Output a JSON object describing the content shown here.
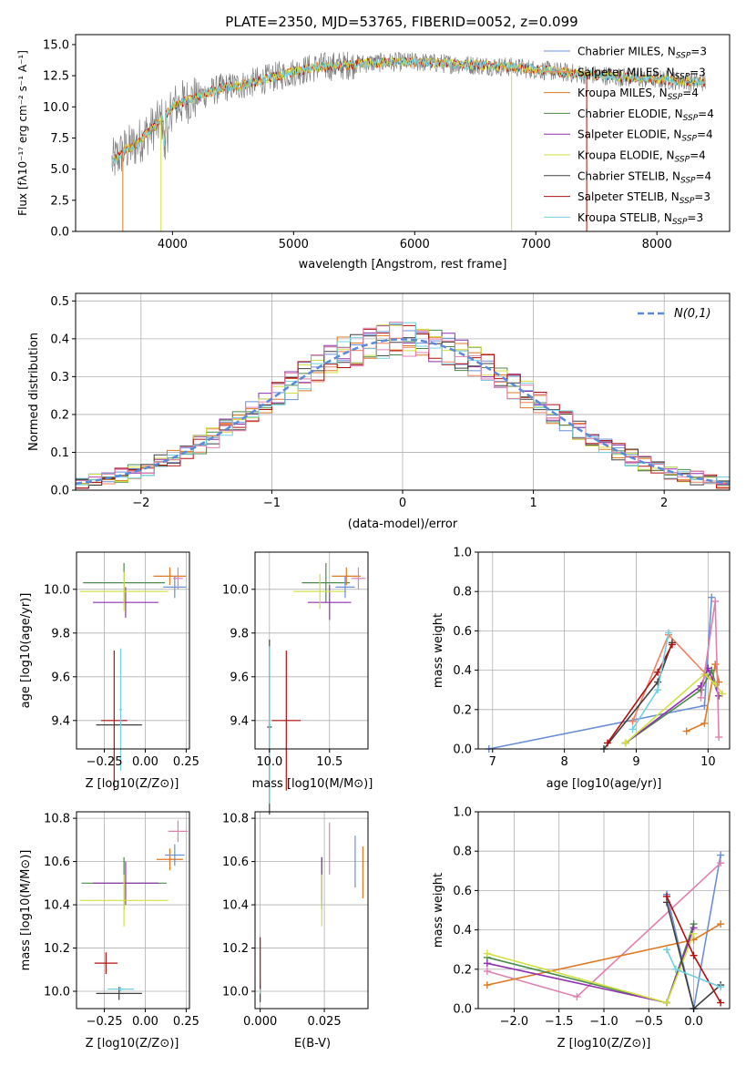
{
  "title": "PLATE=2350, MJD=53765, FIBERID=0052, z=0.099",
  "colors": {
    "chabrier_miles": "#6a8fd8",
    "salpeter_miles": "#f08060",
    "kroupa_miles": "#e07820",
    "chabrier_elodie": "#4a8a4a",
    "salpeter_elodie": "#9030b0",
    "kroupa_elodie": "#d0e040",
    "chabrier_stelib": "#404040",
    "salpeter_stelib": "#b01010",
    "kroupa_stelib": "#70d0e0",
    "pink": "#e080b0",
    "gauss": "#5a8ad8",
    "grid": "#b0b0b0"
  },
  "chart_data": [
    {
      "id": "spectrum",
      "type": "line",
      "xlabel": "wavelength [Angstrom, rest frame]",
      "ylabel": "Flux [fλ10⁻¹⁷ erg cm⁻² s⁻¹ A⁻¹]",
      "xlim": [
        3200,
        8600
      ],
      "ylim": [
        0,
        15.8
      ],
      "xticks": [
        4000,
        5000,
        6000,
        7000,
        8000
      ],
      "yticks": [
        0.0,
        2.5,
        5.0,
        7.5,
        10.0,
        12.5,
        15.0
      ],
      "legend_position": "right",
      "legend": [
        {
          "label": "Chabrier MILES, N_SSP=3",
          "color": "#6a8fd8"
        },
        {
          "label": "Salpeter MILES, N_SSP=3",
          "color": "#f08060"
        },
        {
          "label": "Kroupa MILES, N_SSP=4",
          "color": "#e07820"
        },
        {
          "label": "Chabrier ELODIE, N_SSP=4",
          "color": "#4a8a4a"
        },
        {
          "label": "Salpeter ELODIE, N_SSP=4",
          "color": "#9030b0"
        },
        {
          "label": "Kroupa ELODIE, N_SSP=4",
          "color": "#d0e040"
        },
        {
          "label": "Chabrier STELIB, N_SSP=4",
          "color": "#404040"
        },
        {
          "label": "Salpeter STELIB, N_SSP=3",
          "color": "#b01010"
        },
        {
          "label": "Kroupa STELIB, N_SSP=3",
          "color": "#70d0e0"
        }
      ],
      "continuum": [
        [
          3500,
          5.5
        ],
        [
          3600,
          6.5
        ],
        [
          3700,
          7.0
        ],
        [
          3800,
          8.0
        ],
        [
          3900,
          8.8
        ],
        [
          4000,
          10.0
        ],
        [
          4200,
          10.8
        ],
        [
          4400,
          11.5
        ],
        [
          4600,
          11.8
        ],
        [
          4800,
          12.3
        ],
        [
          5000,
          12.8
        ],
        [
          5200,
          13.2
        ],
        [
          5400,
          13.3
        ],
        [
          5600,
          13.5
        ],
        [
          5800,
          13.6
        ],
        [
          6000,
          13.6
        ],
        [
          6200,
          13.5
        ],
        [
          6400,
          13.4
        ],
        [
          6600,
          13.3
        ],
        [
          6800,
          13.2
        ],
        [
          7000,
          13.0
        ],
        [
          7200,
          12.8
        ],
        [
          7400,
          12.6
        ],
        [
          7600,
          12.5
        ],
        [
          7800,
          12.3
        ],
        [
          8000,
          12.2
        ],
        [
          8200,
          12.1
        ],
        [
          8400,
          12.0
        ]
      ]
    },
    {
      "id": "residuals",
      "type": "line",
      "xlabel": "(data-model)/error",
      "ylabel": "Normed distribution",
      "xlim": [
        -2.5,
        2.5
      ],
      "ylim": [
        0,
        0.52
      ],
      "xticks": [
        -2,
        -1,
        0,
        1,
        2
      ],
      "yticks": [
        0.0,
        0.1,
        0.2,
        0.3,
        0.4,
        0.5
      ],
      "legend_position": "upper right",
      "gauss_label": "N(0,1)",
      "hist_colors": [
        "#6a8fd8",
        "#f08060",
        "#e07820",
        "#4a8a4a",
        "#9030b0",
        "#d0e040",
        "#404040",
        "#b01010",
        "#70d0e0",
        "#e080b0"
      ]
    },
    {
      "id": "age_vs_Z",
      "type": "scatter",
      "xlabel": "Z [log10(Z/Z⊙)]",
      "ylabel": "age  [log10(age/yr)]",
      "xlim": [
        -0.42,
        0.27
      ],
      "ylim": [
        9.27,
        10.17
      ],
      "xticks": [
        -0.25,
        0.0,
        0.25
      ],
      "yticks": [
        9.4,
        9.6,
        9.8,
        10.0
      ],
      "points": [
        {
          "x": -0.16,
          "y": 9.38,
          "xerr": 0.14,
          "yerr": 0.0,
          "color": "#404040"
        },
        {
          "x": -0.19,
          "y": 9.4,
          "xerr": 0.08,
          "yerr": 0.32,
          "color": "#b01010"
        },
        {
          "x": -0.15,
          "y": 9.45,
          "xerr": 0.01,
          "yerr": 0.28,
          "color": "#70d0e0"
        },
        {
          "x": -0.13,
          "y": 10.03,
          "xerr": 0.25,
          "yerr": 0.09,
          "color": "#4a8a4a"
        },
        {
          "x": -0.12,
          "y": 9.94,
          "xerr": 0.2,
          "yerr": 0.07,
          "color": "#9030b0"
        },
        {
          "x": -0.13,
          "y": 9.99,
          "xerr": 0.27,
          "yerr": 0.09,
          "color": "#d0e040"
        },
        {
          "x": 0.15,
          "y": 10.06,
          "xerr": 0.1,
          "yerr": 0.04,
          "color": "#e07820"
        },
        {
          "x": 0.18,
          "y": 10.01,
          "xerr": 0.07,
          "yerr": 0.05,
          "color": "#6a8fd8"
        },
        {
          "x": 0.2,
          "y": 10.05,
          "xerr": 0.03,
          "yerr": 0.05,
          "color": "#e080b0"
        }
      ]
    },
    {
      "id": "age_vs_mass",
      "type": "scatter",
      "xlabel": "mass [log10(M/M⊙)]",
      "ylabel": "",
      "xlim": [
        9.88,
        10.82
      ],
      "ylim": [
        9.27,
        10.17
      ],
      "xticks": [
        10.0,
        10.5
      ],
      "yticks": [
        9.4,
        9.6,
        9.8,
        10.0
      ],
      "points": [
        {
          "x": 10.0,
          "y": 9.37,
          "xerr": 0.02,
          "yerr": 0.4,
          "color": "#404040"
        },
        {
          "x": 10.0,
          "y": 9.38,
          "xerr": 0.01,
          "yerr": 0.36,
          "color": "#70d0e0"
        },
        {
          "x": 10.14,
          "y": 9.4,
          "xerr": 0.12,
          "yerr": 0.32,
          "color": "#b01010"
        },
        {
          "x": 10.47,
          "y": 10.03,
          "xerr": 0.2,
          "yerr": 0.09,
          "color": "#4a8a4a"
        },
        {
          "x": 10.5,
          "y": 9.94,
          "xerr": 0.18,
          "yerr": 0.08,
          "color": "#9030b0"
        },
        {
          "x": 10.42,
          "y": 9.99,
          "xerr": 0.22,
          "yerr": 0.08,
          "color": "#d0e040"
        },
        {
          "x": 10.64,
          "y": 10.06,
          "xerr": 0.12,
          "yerr": 0.04,
          "color": "#e07820"
        },
        {
          "x": 10.63,
          "y": 10.01,
          "xerr": 0.08,
          "yerr": 0.05,
          "color": "#6a8fd8"
        },
        {
          "x": 10.74,
          "y": 10.05,
          "xerr": 0.06,
          "yerr": 0.05,
          "color": "#e080b0"
        }
      ]
    },
    {
      "id": "massweight_vs_age",
      "type": "line",
      "xlabel": "age  [log10(age/yr)]",
      "ylabel": "mass weight",
      "xlim": [
        6.8,
        10.3
      ],
      "ylim": [
        0,
        1.0
      ],
      "xticks": [
        7,
        8,
        9,
        10
      ],
      "yticks": [
        0.0,
        0.2,
        0.4,
        0.6,
        0.8,
        1.0
      ],
      "series": [
        {
          "color": "#6a8fd8",
          "points": [
            [
              6.95,
              0.0
            ],
            [
              9.95,
              0.22
            ],
            [
              10.05,
              0.77
            ]
          ]
        },
        {
          "color": "#f08060",
          "points": [
            [
              8.95,
              0.14
            ],
            [
              9.45,
              0.58
            ],
            [
              10.1,
              0.33
            ]
          ]
        },
        {
          "color": "#e07820",
          "points": [
            [
              9.7,
              0.09
            ],
            [
              9.95,
              0.13
            ],
            [
              10.1,
              0.43
            ],
            [
              10.15,
              0.34
            ]
          ]
        },
        {
          "color": "#4a8a4a",
          "points": [
            [
              8.85,
              0.03
            ],
            [
              9.9,
              0.3
            ],
            [
              10.05,
              0.4
            ],
            [
              10.15,
              0.27
            ]
          ]
        },
        {
          "color": "#9030b0",
          "points": [
            [
              8.85,
              0.03
            ],
            [
              9.9,
              0.32
            ],
            [
              10.0,
              0.41
            ],
            [
              10.15,
              0.27
            ]
          ]
        },
        {
          "color": "#d0e040",
          "points": [
            [
              8.85,
              0.03
            ],
            [
              9.95,
              0.38
            ],
            [
              10.1,
              0.33
            ],
            [
              10.2,
              0.28
            ]
          ]
        },
        {
          "color": "#404040",
          "points": [
            [
              8.55,
              0.0
            ],
            [
              9.3,
              0.34
            ],
            [
              9.5,
              0.54
            ]
          ]
        },
        {
          "color": "#b01010",
          "points": [
            [
              8.6,
              0.03
            ],
            [
              9.3,
              0.39
            ],
            [
              9.5,
              0.53
            ]
          ]
        },
        {
          "color": "#70d0e0",
          "points": [
            [
              8.95,
              0.1
            ],
            [
              9.3,
              0.3
            ],
            [
              9.45,
              0.59
            ]
          ]
        },
        {
          "color": "#e080b0",
          "points": [
            [
              9.9,
              0.26
            ],
            [
              10.1,
              0.75
            ],
            [
              10.15,
              0.06
            ]
          ]
        }
      ]
    },
    {
      "id": "mass_vs_Z",
      "type": "scatter",
      "xlabel": "Z [log10(Z/Z⊙)]",
      "ylabel": "mass [log10(M/M⊙)]",
      "xlim": [
        -0.42,
        0.27
      ],
      "ylim": [
        9.92,
        10.83
      ],
      "xticks": [
        -0.25,
        0.0,
        0.25
      ],
      "yticks": [
        10.0,
        10.2,
        10.4,
        10.6,
        10.8
      ],
      "points": [
        {
          "x": -0.16,
          "y": 9.99,
          "xerr": 0.14,
          "yerr": 0.03,
          "color": "#404040"
        },
        {
          "x": -0.15,
          "y": 10.01,
          "xerr": 0.08,
          "yerr": 0.01,
          "color": "#70d0e0"
        },
        {
          "x": -0.24,
          "y": 10.13,
          "xerr": 0.07,
          "yerr": 0.05,
          "color": "#b01010"
        },
        {
          "x": -0.13,
          "y": 10.5,
          "xerr": 0.26,
          "yerr": 0.12,
          "color": "#4a8a4a"
        },
        {
          "x": -0.12,
          "y": 10.5,
          "xerr": 0.2,
          "yerr": 0.1,
          "color": "#9030b0"
        },
        {
          "x": -0.13,
          "y": 10.42,
          "xerr": 0.27,
          "yerr": 0.12,
          "color": "#d0e040"
        },
        {
          "x": 0.15,
          "y": 10.61,
          "xerr": 0.08,
          "yerr": 0.05,
          "color": "#e07820"
        },
        {
          "x": 0.18,
          "y": 10.63,
          "xerr": 0.06,
          "yerr": 0.05,
          "color": "#6a8fd8"
        },
        {
          "x": 0.2,
          "y": 10.74,
          "xerr": 0.06,
          "yerr": 0.05,
          "color": "#e080b0"
        }
      ]
    },
    {
      "id": "mass_vs_EBV",
      "type": "scatter",
      "xlabel": "E(B-V)",
      "ylabel": "",
      "xlim": [
        -0.002,
        0.042
      ],
      "ylim": [
        9.92,
        10.83
      ],
      "xticks": [
        0.0,
        0.025
      ],
      "yticks": [
        10.0,
        10.2,
        10.4,
        10.6,
        10.8
      ],
      "points": [
        {
          "x": 0.0,
          "y": 9.99,
          "xerr": 0.0,
          "yerr": 0.04,
          "color": "#404040"
        },
        {
          "x": 0.0,
          "y": 10.02,
          "xerr": 0.0,
          "yerr": 0.03,
          "color": "#70d0e0"
        },
        {
          "x": 0.0,
          "y": 10.13,
          "xerr": 0.0,
          "yerr": 0.12,
          "color": "#b01010"
        },
        {
          "x": 0.024,
          "y": 10.5,
          "xerr": 0.0,
          "yerr": 0.12,
          "color": "#4a8a4a"
        },
        {
          "x": 0.024,
          "y": 10.52,
          "xerr": 0.0,
          "yerr": 0.1,
          "color": "#9030b0"
        },
        {
          "x": 0.024,
          "y": 10.42,
          "xerr": 0.0,
          "yerr": 0.12,
          "color": "#d0e040"
        },
        {
          "x": 0.04,
          "y": 10.55,
          "xerr": 0.0,
          "yerr": 0.12,
          "color": "#e07820"
        },
        {
          "x": 0.037,
          "y": 10.6,
          "xerr": 0.0,
          "yerr": 0.12,
          "color": "#6a8fd8"
        },
        {
          "x": 0.027,
          "y": 10.66,
          "xerr": 0.0,
          "yerr": 0.12,
          "color": "#e080b0"
        }
      ]
    },
    {
      "id": "massweight_vs_Z",
      "type": "line",
      "xlabel": "Z [log10(Z/Z⊙)]",
      "ylabel": "mass weight",
      "xlim": [
        -2.4,
        0.4
      ],
      "ylim": [
        0,
        1.0
      ],
      "xticks": [
        -2.0,
        -1.5,
        -1.0,
        -0.5,
        0.0
      ],
      "yticks": [
        0.0,
        0.2,
        0.4,
        0.6,
        0.8,
        1.0
      ],
      "series": [
        {
          "color": "#6a8fd8",
          "points": [
            [
              -0.3,
              0.58
            ],
            [
              0.0,
              0.0
            ],
            [
              0.3,
              0.78
            ]
          ]
        },
        {
          "color": "#e080b0",
          "points": [
            [
              -2.3,
              0.19
            ],
            [
              -1.3,
              0.06
            ],
            [
              0.3,
              0.74
            ]
          ]
        },
        {
          "color": "#e07820",
          "points": [
            [
              -2.3,
              0.12
            ],
            [
              0.0,
              0.35
            ],
            [
              0.3,
              0.43
            ]
          ]
        },
        {
          "color": "#4a8a4a",
          "points": [
            [
              -2.3,
              0.26
            ],
            [
              -0.3,
              0.03
            ],
            [
              0.0,
              0.43
            ]
          ]
        },
        {
          "color": "#9030b0",
          "points": [
            [
              -2.3,
              0.23
            ],
            [
              -0.3,
              0.03
            ],
            [
              0.0,
              0.41
            ]
          ]
        },
        {
          "color": "#d0e040",
          "points": [
            [
              -2.3,
              0.28
            ],
            [
              -0.3,
              0.03
            ],
            [
              0.0,
              0.38
            ]
          ]
        },
        {
          "color": "#404040",
          "points": [
            [
              -0.3,
              0.54
            ],
            [
              0.0,
              0.0
            ],
            [
              0.3,
              0.12
            ]
          ]
        },
        {
          "color": "#b01010",
          "points": [
            [
              -0.3,
              0.57
            ],
            [
              0.0,
              0.27
            ],
            [
              0.3,
              0.03
            ]
          ]
        },
        {
          "color": "#70d0e0",
          "points": [
            [
              -0.3,
              0.3
            ],
            [
              -0.2,
              0.2
            ],
            [
              0.3,
              0.11
            ]
          ]
        }
      ]
    }
  ]
}
